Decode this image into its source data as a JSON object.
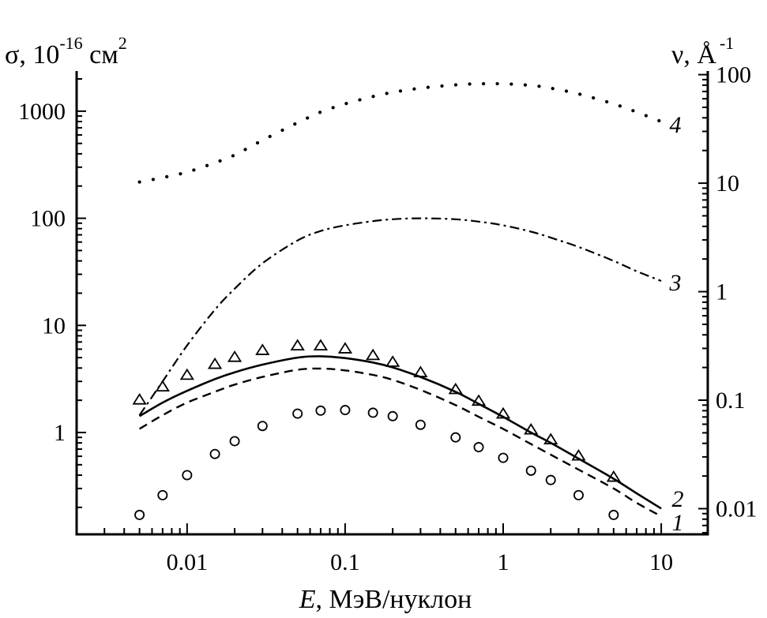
{
  "chart_data": {
    "type": "line",
    "title": "",
    "xlabel": {
      "var": "E",
      "rest": ", МэВ/нуклон"
    },
    "ylabel_left": {
      "base": "σ, 10",
      "exp": "-16",
      "unit": " см",
      "unit_exp": "2"
    },
    "ylabel_right": {
      "base": "ν, Å",
      "exp": "-1"
    },
    "xscale": "log",
    "yscale": "log",
    "xlim": [
      0.002,
      19.7
    ],
    "ylim_left": [
      0.112,
      2370
    ],
    "ylim_right": [
      0.0058,
      108
    ],
    "x_ticks": [
      0.01,
      0.1,
      1,
      10
    ],
    "x_tick_labels": [
      "0.01",
      "0.1",
      "1",
      "10"
    ],
    "y_left_ticks": [
      1,
      10,
      100,
      1000
    ],
    "y_left_tick_labels": [
      "1",
      "10",
      "100",
      "1000"
    ],
    "y_right_ticks": [
      0.01,
      0.1,
      1,
      10,
      100
    ],
    "y_right_tick_labels": [
      "0.01",
      "0.1",
      "1",
      "10",
      "100"
    ],
    "grid": false,
    "legend": "none (curves labeled inline at right end)",
    "series": [
      {
        "name": "1",
        "style": "dashed",
        "axis": "left",
        "x": [
          0.005,
          0.007,
          0.01,
          0.015,
          0.02,
          0.03,
          0.05,
          0.07,
          0.1,
          0.15,
          0.2,
          0.3,
          0.5,
          0.7,
          1,
          1.5,
          2,
          3,
          5,
          7,
          10
        ],
        "y": [
          1.08,
          1.45,
          1.9,
          2.4,
          2.8,
          3.3,
          3.85,
          3.95,
          3.8,
          3.45,
          3.1,
          2.5,
          1.8,
          1.4,
          1.08,
          0.78,
          0.62,
          0.45,
          0.3,
          0.22,
          0.165
        ]
      },
      {
        "name": "2",
        "style": "solid",
        "axis": "left",
        "x": [
          0.005,
          0.007,
          0.01,
          0.015,
          0.02,
          0.03,
          0.05,
          0.07,
          0.1,
          0.15,
          0.2,
          0.3,
          0.5,
          0.7,
          1,
          1.5,
          2,
          3,
          5,
          7,
          10
        ],
        "y": [
          1.42,
          1.9,
          2.45,
          3.15,
          3.65,
          4.3,
          5.0,
          5.15,
          4.95,
          4.5,
          4.05,
          3.3,
          2.4,
          1.85,
          1.4,
          1.0,
          0.8,
          0.57,
          0.37,
          0.27,
          0.195
        ]
      },
      {
        "name": "3",
        "style": "dash-dot",
        "axis": "left",
        "x": [
          0.005,
          0.007,
          0.01,
          0.015,
          0.02,
          0.03,
          0.05,
          0.07,
          0.1,
          0.15,
          0.2,
          0.3,
          0.5,
          0.7,
          1,
          1.5,
          2,
          3,
          5,
          7,
          10
        ],
        "y": [
          1.45,
          3.0,
          6.5,
          14,
          22,
          38,
          62,
          76,
          86,
          94,
          98,
          100,
          98,
          93,
          86,
          75,
          66,
          54,
          40,
          32,
          26
        ]
      },
      {
        "name": "4",
        "style": "dotted",
        "axis": "left",
        "x": [
          0.005,
          0.007,
          0.01,
          0.015,
          0.02,
          0.03,
          0.05,
          0.07,
          0.1,
          0.15,
          0.2,
          0.3,
          0.5,
          0.7,
          1,
          1.5,
          2,
          3,
          5,
          7,
          10
        ],
        "y": [
          218,
          240,
          270,
          330,
          390,
          535,
          780,
          980,
          1170,
          1370,
          1500,
          1640,
          1760,
          1800,
          1800,
          1740,
          1640,
          1450,
          1170,
          980,
          800
        ]
      },
      {
        "name": "triangles",
        "style": "marker-triangle-open",
        "axis": "left",
        "x": [
          0.005,
          0.007,
          0.01,
          0.015,
          0.02,
          0.03,
          0.05,
          0.07,
          0.1,
          0.15,
          0.2,
          0.3,
          0.5,
          0.7,
          1,
          1.5,
          2,
          3,
          5
        ],
        "y": [
          2.0,
          2.65,
          3.4,
          4.3,
          5.0,
          5.8,
          6.4,
          6.4,
          6.0,
          5.2,
          4.5,
          3.6,
          2.5,
          1.95,
          1.48,
          1.05,
          0.85,
          0.6,
          0.38
        ]
      },
      {
        "name": "circles",
        "style": "marker-circle-open",
        "axis": "left",
        "x": [
          0.005,
          0.007,
          0.01,
          0.015,
          0.02,
          0.03,
          0.05,
          0.07,
          0.1,
          0.15,
          0.2,
          0.3,
          0.5,
          0.7,
          1,
          1.5,
          2,
          3,
          5
        ],
        "y": [
          0.17,
          0.26,
          0.4,
          0.63,
          0.83,
          1.15,
          1.5,
          1.6,
          1.62,
          1.53,
          1.42,
          1.18,
          0.9,
          0.73,
          0.58,
          0.44,
          0.36,
          0.26,
          0.17
        ]
      }
    ],
    "annotations": [
      {
        "text": "1",
        "near_series": "1",
        "position": "right end"
      },
      {
        "text": "2",
        "near_series": "2",
        "position": "right end"
      },
      {
        "text": "3",
        "near_series": "3",
        "position": "right end"
      },
      {
        "text": "4",
        "near_series": "4",
        "position": "right end"
      }
    ]
  }
}
